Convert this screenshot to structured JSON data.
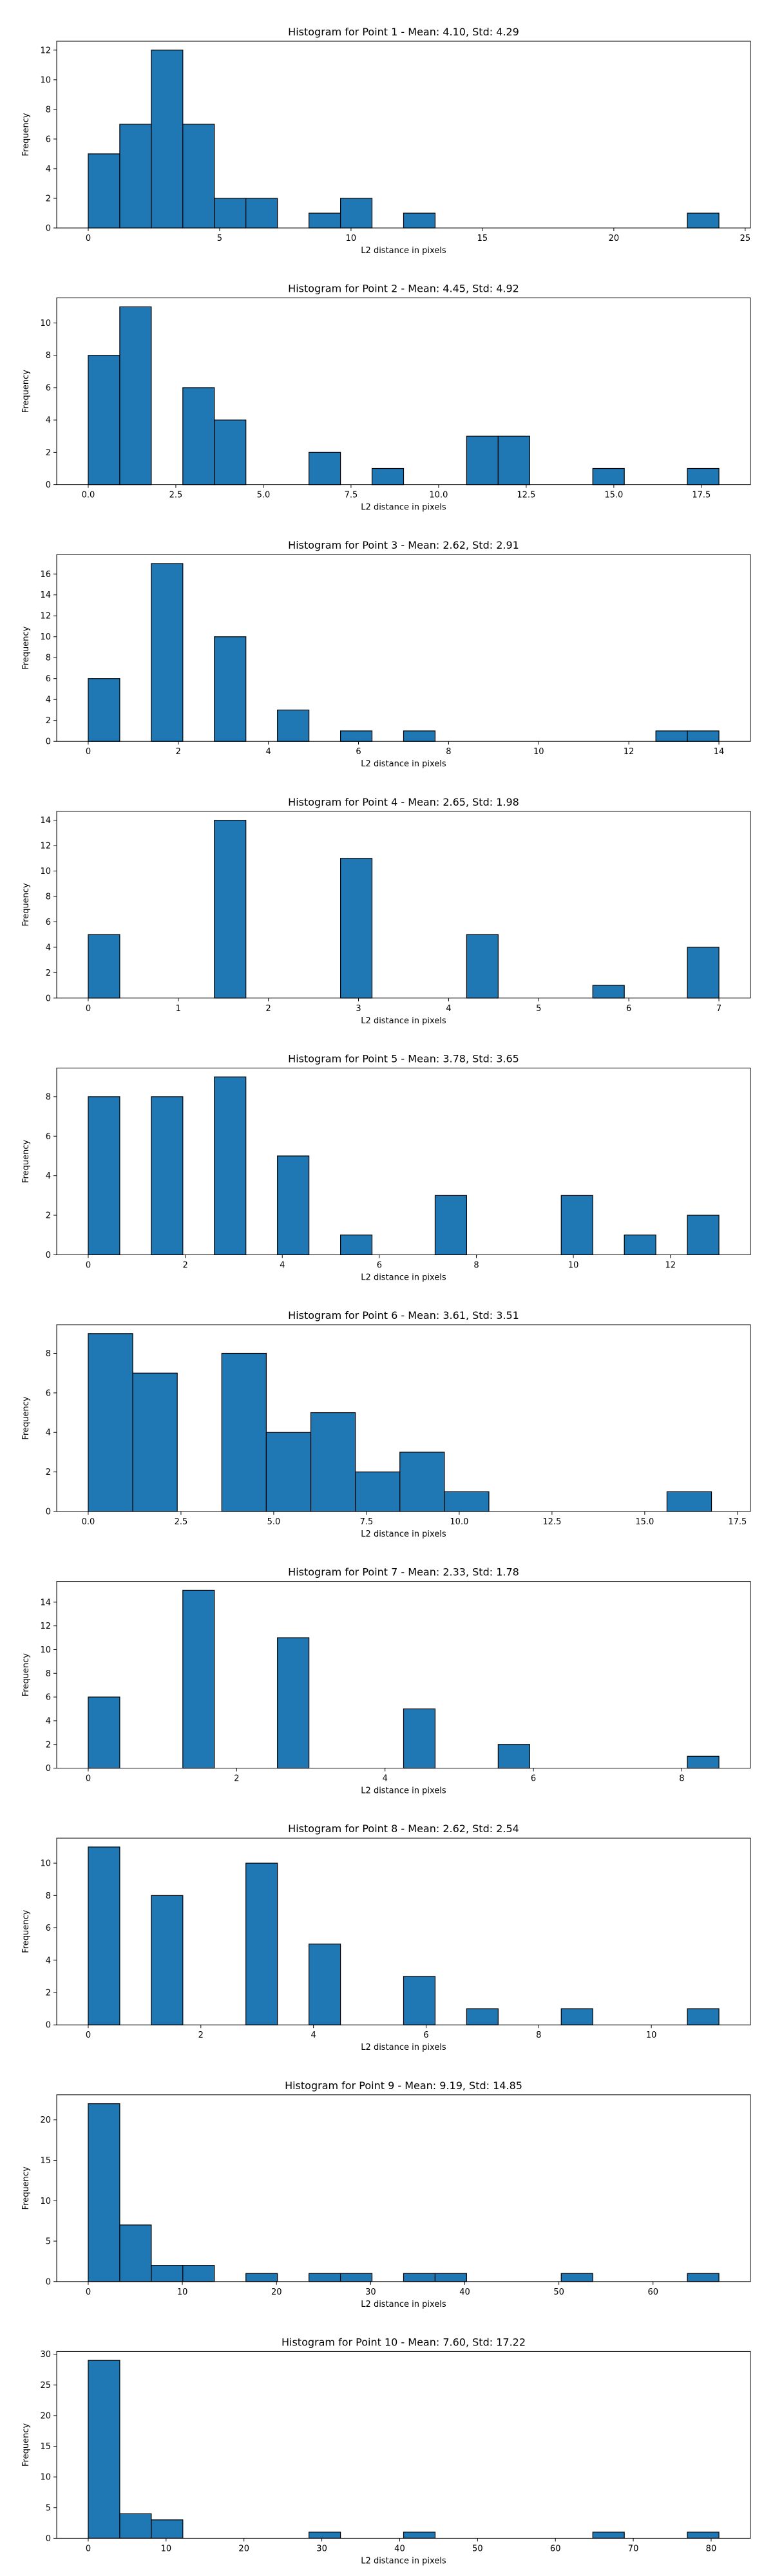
{
  "chart_data": [
    {
      "type": "bar",
      "title": "Histogram for Point 1 - Mean: 4.10, Std: 4.29",
      "xlabel": "L2 distance in pixels",
      "ylabel": "Frequency",
      "xlim": [
        -1.2,
        25.2
      ],
      "ylim": [
        0,
        12.6
      ],
      "xticks": [
        0,
        5,
        10,
        15,
        20,
        25
      ],
      "yticks": [
        0,
        2,
        4,
        6,
        8,
        10,
        12
      ],
      "xtick_labels": [
        "0",
        "5",
        "10",
        "15",
        "20",
        "25"
      ],
      "ytick_labels": [
        "0",
        "2",
        "4",
        "6",
        "8",
        "10",
        "12"
      ],
      "bins": [
        [
          0.0,
          1.2,
          5
        ],
        [
          1.2,
          2.4,
          7
        ],
        [
          2.4,
          3.6,
          12
        ],
        [
          3.6,
          4.8,
          7
        ],
        [
          4.8,
          6.0,
          2
        ],
        [
          6.0,
          7.2,
          2
        ],
        [
          8.4,
          9.6,
          1
        ],
        [
          9.6,
          10.8,
          2
        ],
        [
          12.0,
          13.2,
          1
        ],
        [
          22.8,
          24.0,
          1
        ]
      ],
      "grid": false,
      "legend": "none"
    },
    {
      "type": "bar",
      "title": "Histogram for Point 2 - Mean: 4.45, Std: 4.92",
      "xlabel": "L2 distance in pixels",
      "ylabel": "Frequency",
      "xlim": [
        -0.9,
        18.9
      ],
      "ylim": [
        0,
        11.55
      ],
      "xticks": [
        0.0,
        2.5,
        5.0,
        7.5,
        10.0,
        12.5,
        15.0,
        17.5
      ],
      "yticks": [
        0,
        2,
        4,
        6,
        8,
        10
      ],
      "xtick_labels": [
        "0.0",
        "2.5",
        "5.0",
        "7.5",
        "10.0",
        "12.5",
        "15.0",
        "17.5"
      ],
      "ytick_labels": [
        "0",
        "2",
        "4",
        "6",
        "8",
        "10"
      ],
      "bins": [
        [
          0.0,
          0.9,
          8
        ],
        [
          0.9,
          1.8,
          11
        ],
        [
          2.7,
          3.6,
          6
        ],
        [
          3.6,
          4.5,
          4
        ],
        [
          6.3,
          7.2,
          2
        ],
        [
          8.1,
          9.0,
          1
        ],
        [
          10.8,
          11.7,
          3
        ],
        [
          11.7,
          12.6,
          3
        ],
        [
          14.4,
          15.3,
          1
        ],
        [
          17.1,
          18.0,
          1
        ]
      ],
      "grid": false,
      "legend": "none"
    },
    {
      "type": "bar",
      "title": "Histogram for Point 3 - Mean: 2.62, Std: 2.91",
      "xlabel": "L2 distance in pixels",
      "ylabel": "Frequency",
      "xlim": [
        -0.7,
        14.7
      ],
      "ylim": [
        0,
        17.85
      ],
      "xticks": [
        0,
        2,
        4,
        6,
        8,
        10,
        12,
        14
      ],
      "yticks": [
        0,
        2,
        4,
        6,
        8,
        10,
        12,
        14,
        16
      ],
      "xtick_labels": [
        "0",
        "2",
        "4",
        "6",
        "8",
        "10",
        "12",
        "14"
      ],
      "ytick_labels": [
        "0",
        "2",
        "4",
        "6",
        "8",
        "10",
        "12",
        "14",
        "16"
      ],
      "bins": [
        [
          0.0,
          0.7,
          6
        ],
        [
          1.4,
          2.1,
          17
        ],
        [
          2.8,
          3.5,
          10
        ],
        [
          4.2,
          4.9,
          3
        ],
        [
          5.6,
          6.3,
          1
        ],
        [
          7.0,
          7.7,
          1
        ],
        [
          12.6,
          13.3,
          1
        ],
        [
          13.3,
          14.0,
          1
        ]
      ],
      "grid": false,
      "legend": "none"
    },
    {
      "type": "bar",
      "title": "Histogram for Point 4 - Mean: 2.65, Std: 1.98",
      "xlabel": "L2 distance in pixels",
      "ylabel": "Frequency",
      "xlim": [
        -0.35,
        7.35
      ],
      "ylim": [
        0,
        14.7
      ],
      "xticks": [
        0,
        1,
        2,
        3,
        4,
        5,
        6,
        7
      ],
      "yticks": [
        0,
        2,
        4,
        6,
        8,
        10,
        12,
        14
      ],
      "xtick_labels": [
        "0",
        "1",
        "2",
        "3",
        "4",
        "5",
        "6",
        "7"
      ],
      "ytick_labels": [
        "0",
        "2",
        "4",
        "6",
        "8",
        "10",
        "12",
        "14"
      ],
      "bins": [
        [
          0.0,
          0.35,
          5
        ],
        [
          1.4,
          1.75,
          14
        ],
        [
          2.8,
          3.15,
          11
        ],
        [
          4.2,
          4.55,
          5
        ],
        [
          5.6,
          5.95,
          1
        ],
        [
          6.65,
          7.0,
          4
        ]
      ],
      "grid": false,
      "legend": "none"
    },
    {
      "type": "bar",
      "title": "Histogram for Point 5 - Mean: 3.78, Std: 3.65",
      "xlabel": "L2 distance in pixels",
      "ylabel": "Frequency",
      "xlim": [
        -0.65,
        13.65
      ],
      "ylim": [
        0,
        9.45
      ],
      "xticks": [
        0,
        2,
        4,
        6,
        8,
        10,
        12
      ],
      "yticks": [
        0,
        2,
        4,
        6,
        8
      ],
      "xtick_labels": [
        "0",
        "2",
        "4",
        "6",
        "8",
        "10",
        "12"
      ],
      "ytick_labels": [
        "0",
        "2",
        "4",
        "6",
        "8"
      ],
      "bins": [
        [
          0.0,
          0.65,
          8
        ],
        [
          1.3,
          1.95,
          8
        ],
        [
          2.6,
          3.25,
          9
        ],
        [
          3.9,
          4.55,
          5
        ],
        [
          5.2,
          5.85,
          1
        ],
        [
          7.15,
          7.8,
          3
        ],
        [
          9.75,
          10.4,
          3
        ],
        [
          11.05,
          11.7,
          1
        ],
        [
          12.35,
          13.0,
          2
        ]
      ],
      "grid": false,
      "legend": "none"
    },
    {
      "type": "bar",
      "title": "Histogram for Point 6 - Mean: 3.61, Std: 3.51",
      "xlabel": "L2 distance in pixels",
      "ylabel": "Frequency",
      "xlim": [
        -0.85,
        17.85
      ],
      "ylim": [
        0,
        9.45
      ],
      "xticks": [
        0.0,
        2.5,
        5.0,
        7.5,
        10.0,
        12.5,
        15.0,
        17.5
      ],
      "yticks": [
        0,
        2,
        4,
        6,
        8
      ],
      "xtick_labels": [
        "0.0",
        "2.5",
        "5.0",
        "7.5",
        "10.0",
        "12.5",
        "15.0",
        "17.5"
      ],
      "ytick_labels": [
        "0",
        "2",
        "4",
        "6",
        "8"
      ],
      "bins": [
        [
          0.0,
          1.2,
          9
        ],
        [
          1.2,
          2.4,
          7
        ],
        [
          3.6,
          4.8,
          8
        ],
        [
          4.8,
          6.0,
          4
        ],
        [
          6.0,
          7.2,
          5
        ],
        [
          7.2,
          8.4,
          2
        ],
        [
          8.4,
          9.6,
          3
        ],
        [
          9.6,
          10.8,
          1
        ],
        [
          15.6,
          16.8,
          1
        ]
      ],
      "grid": false,
      "legend": "none"
    },
    {
      "type": "bar",
      "title": "Histogram for Point 7 - Mean: 2.33, Std: 1.78",
      "xlabel": "L2 distance in pixels",
      "ylabel": "Frequency",
      "xlim": [
        -0.425,
        8.925
      ],
      "ylim": [
        0,
        15.75
      ],
      "xticks": [
        0,
        2,
        4,
        6,
        8
      ],
      "yticks": [
        0,
        2,
        4,
        6,
        8,
        10,
        12,
        14
      ],
      "xtick_labels": [
        "0",
        "2",
        "4",
        "6",
        "8"
      ],
      "ytick_labels": [
        "0",
        "2",
        "4",
        "6",
        "8",
        "10",
        "12",
        "14"
      ],
      "bins": [
        [
          0.0,
          0.425,
          6
        ],
        [
          1.275,
          1.7,
          15
        ],
        [
          2.55,
          2.975,
          11
        ],
        [
          4.25,
          4.675,
          5
        ],
        [
          5.525,
          5.95,
          2
        ],
        [
          8.075,
          8.5,
          1
        ]
      ],
      "grid": false,
      "legend": "none"
    },
    {
      "type": "bar",
      "title": "Histogram for Point 8 - Mean: 2.62, Std: 2.54",
      "xlabel": "L2 distance in pixels",
      "ylabel": "Frequency",
      "xlim": [
        -0.56,
        11.76
      ],
      "ylim": [
        0,
        11.55
      ],
      "xticks": [
        0,
        2,
        4,
        6,
        8,
        10
      ],
      "yticks": [
        0,
        2,
        4,
        6,
        8,
        10
      ],
      "xtick_labels": [
        "0",
        "2",
        "4",
        "6",
        "8",
        "10"
      ],
      "ytick_labels": [
        "0",
        "2",
        "4",
        "6",
        "8",
        "10"
      ],
      "bins": [
        [
          0.0,
          0.56,
          11
        ],
        [
          1.12,
          1.68,
          8
        ],
        [
          2.8,
          3.36,
          10
        ],
        [
          3.92,
          4.48,
          5
        ],
        [
          5.6,
          6.16,
          3
        ],
        [
          6.72,
          7.28,
          1
        ],
        [
          8.4,
          8.96,
          1
        ],
        [
          10.64,
          11.2,
          1
        ]
      ],
      "grid": false,
      "legend": "none"
    },
    {
      "type": "bar",
      "title": "Histogram for Point 9 - Mean: 9.19, Std: 14.85",
      "xlabel": "L2 distance in pixels",
      "ylabel": "Frequency",
      "xlim": [
        -3.35,
        70.35
      ],
      "ylim": [
        0,
        23.1
      ],
      "xticks": [
        0,
        10,
        20,
        30,
        40,
        50,
        60
      ],
      "yticks": [
        0,
        5,
        10,
        15,
        20
      ],
      "xtick_labels": [
        "0",
        "10",
        "20",
        "30",
        "40",
        "50",
        "60"
      ],
      "ytick_labels": [
        "0",
        "5",
        "10",
        "15",
        "20"
      ],
      "bins": [
        [
          0.0,
          3.35,
          22
        ],
        [
          3.35,
          6.7,
          7
        ],
        [
          6.7,
          10.05,
          2
        ],
        [
          10.05,
          13.4,
          2
        ],
        [
          16.75,
          20.1,
          1
        ],
        [
          23.45,
          26.8,
          1
        ],
        [
          26.8,
          30.15,
          1
        ],
        [
          33.5,
          36.85,
          1
        ],
        [
          36.85,
          40.2,
          1
        ],
        [
          50.25,
          53.6,
          1
        ],
        [
          63.65,
          67.0,
          1
        ]
      ],
      "grid": false,
      "legend": "none"
    },
    {
      "type": "bar",
      "title": "Histogram for Point 10 - Mean: 7.60, Std: 17.22",
      "xlabel": "L2 distance in pixels",
      "ylabel": "Frequency",
      "xlim": [
        -4.05,
        85.05
      ],
      "ylim": [
        0,
        30.45
      ],
      "xticks": [
        0,
        10,
        20,
        30,
        40,
        50,
        60,
        70,
        80
      ],
      "yticks": [
        0,
        5,
        10,
        15,
        20,
        25,
        30
      ],
      "xtick_labels": [
        "0",
        "10",
        "20",
        "30",
        "40",
        "50",
        "60",
        "70",
        "80"
      ],
      "ytick_labels": [
        "0",
        "5",
        "10",
        "15",
        "20",
        "25",
        "30"
      ],
      "bins": [
        [
          0.0,
          4.05,
          29
        ],
        [
          4.05,
          8.1,
          4
        ],
        [
          8.1,
          12.15,
          3
        ],
        [
          28.35,
          32.4,
          1
        ],
        [
          40.5,
          44.55,
          1
        ],
        [
          64.8,
          68.85,
          1
        ],
        [
          76.95,
          81.0,
          1
        ]
      ],
      "grid": false,
      "legend": "none"
    }
  ]
}
